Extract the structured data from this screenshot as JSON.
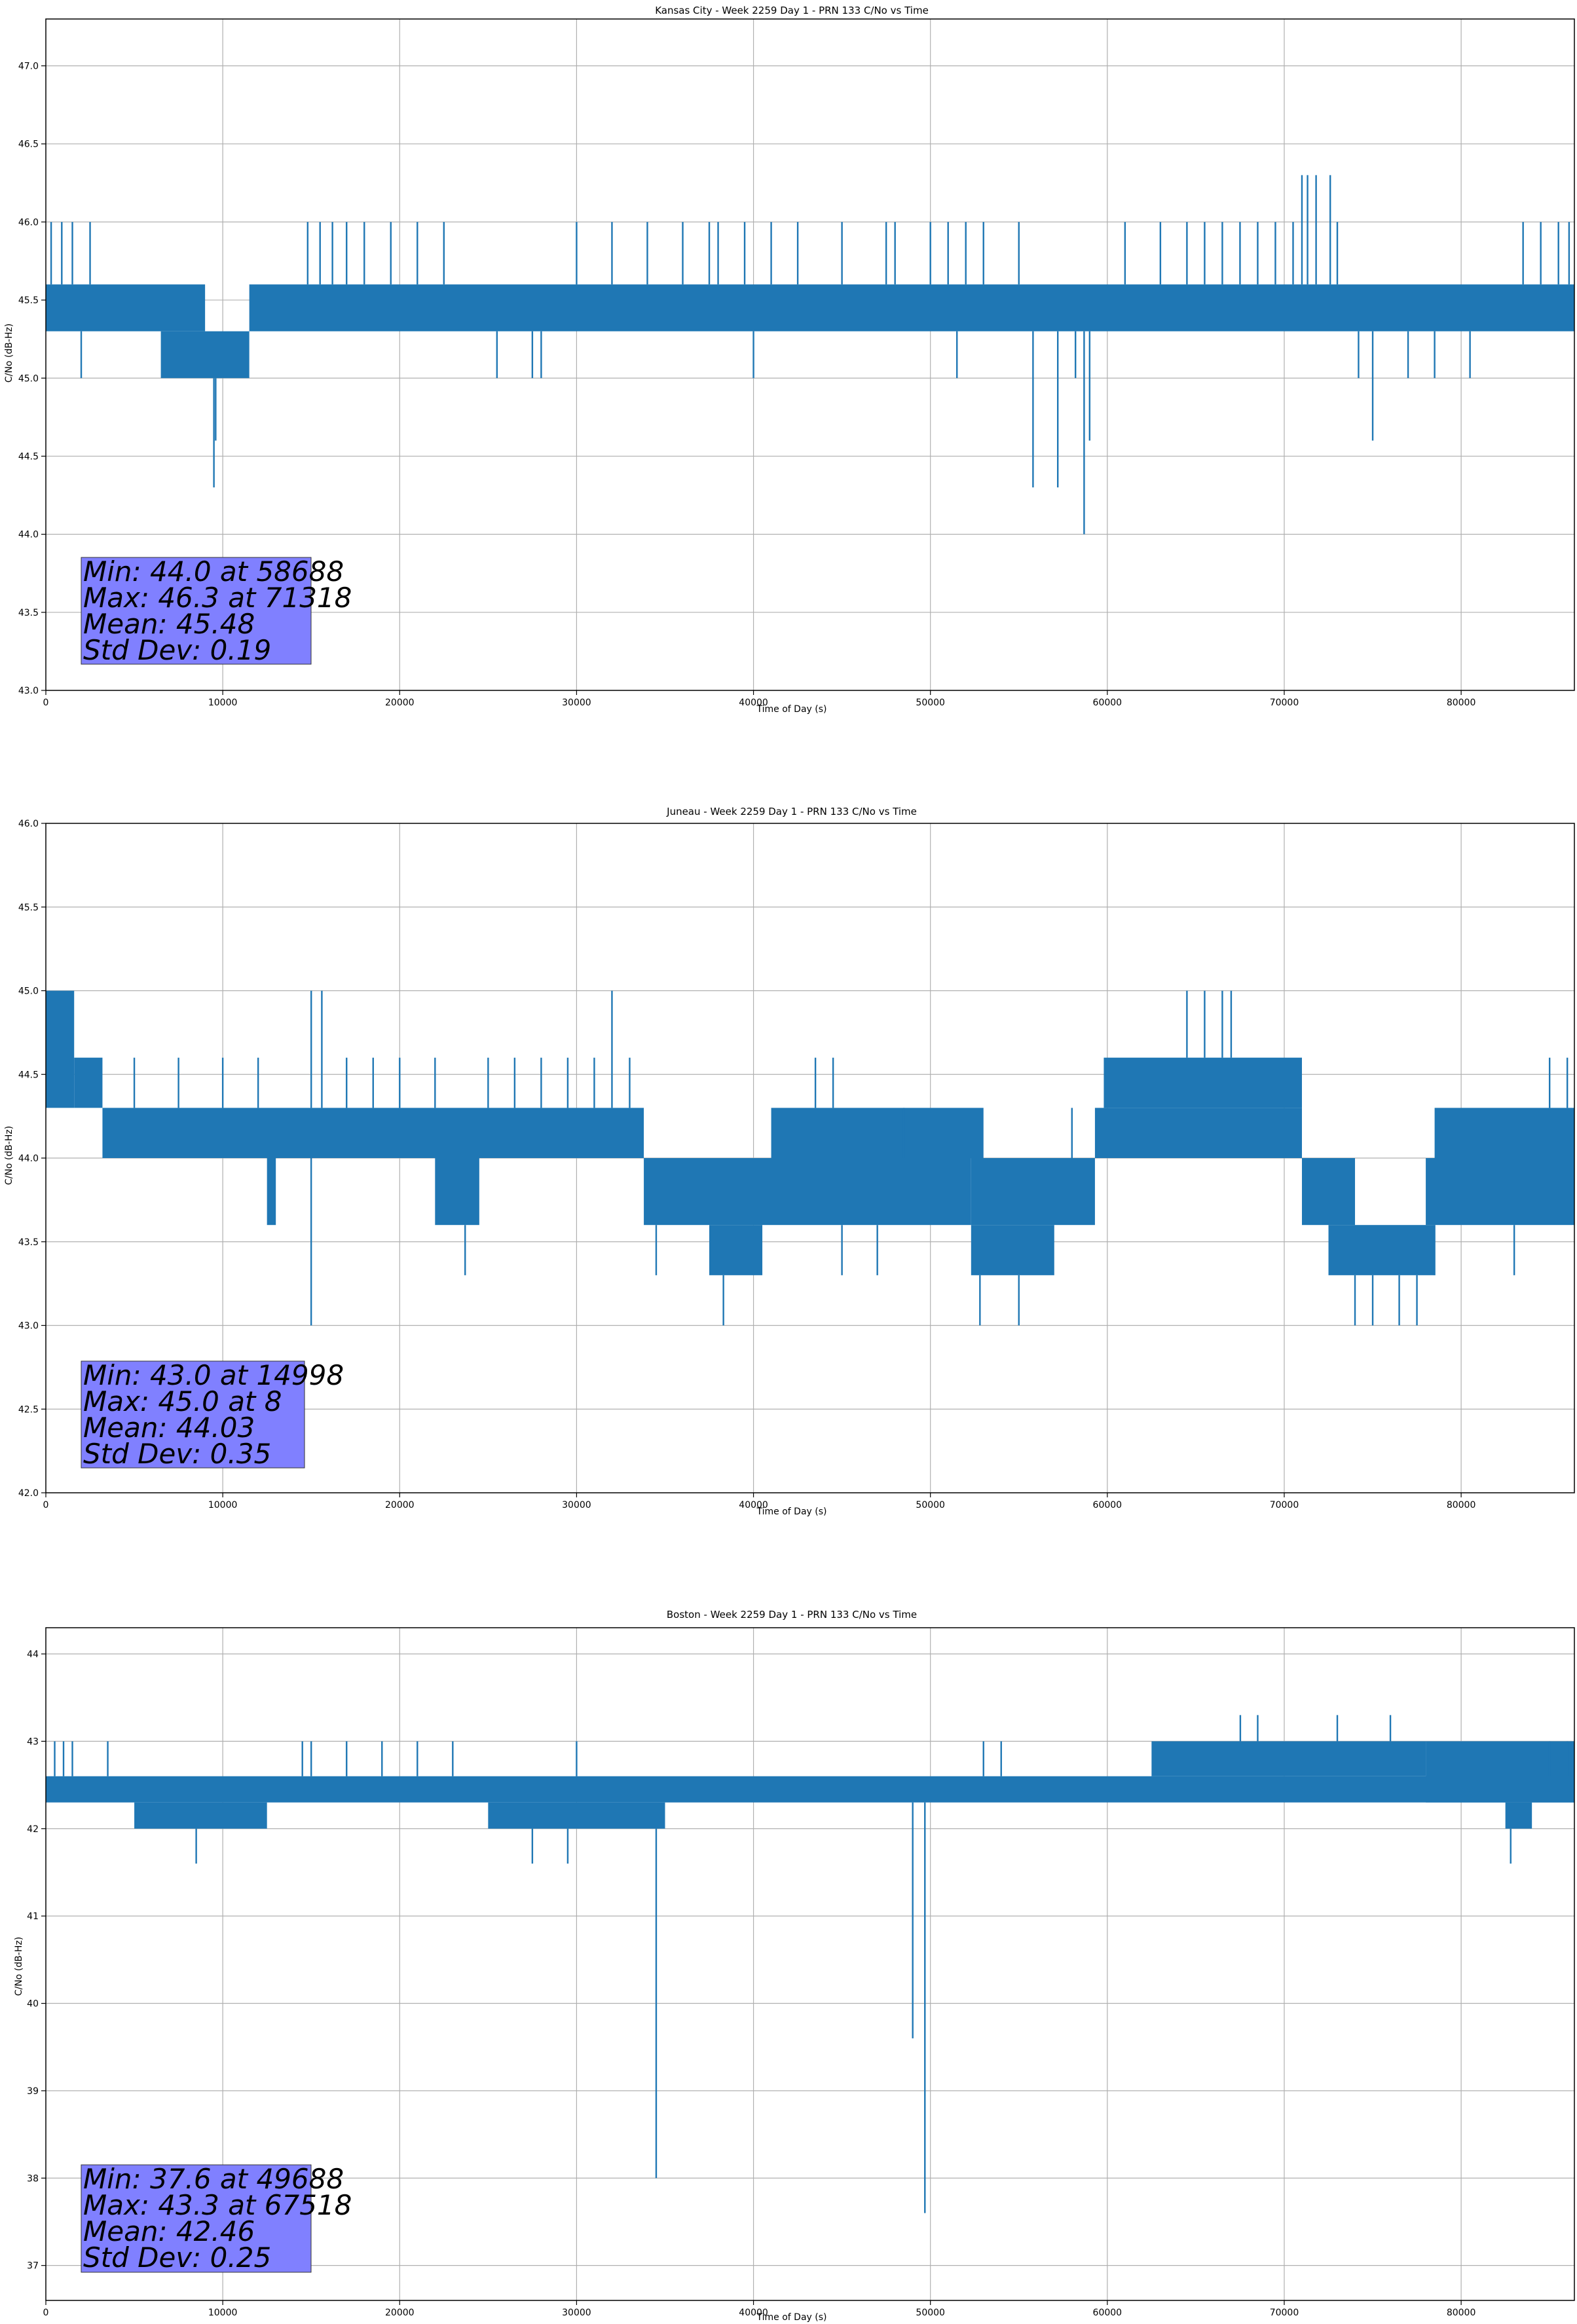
{
  "chart_data": [
    {
      "type": "line",
      "title": "Kansas City - Week 2259 Day 1 - PRN 133 C/No vs Time",
      "xlabel": "Time of Day (s)",
      "ylabel": "C/No (dB-Hz)",
      "xlim": [
        0,
        86400
      ],
      "ylim": [
        43.0,
        47.3
      ],
      "xticks": [
        0,
        10000,
        20000,
        30000,
        40000,
        50000,
        60000,
        70000,
        80000
      ],
      "yticks": [
        43.0,
        43.5,
        44.0,
        44.5,
        45.0,
        45.5,
        46.0,
        46.5,
        47.0
      ],
      "ytick_format": 1,
      "grid": true,
      "color": "#1f77b4",
      "series": [
        {
          "dense_bands": [
            {
              "x": [
                0,
                9000
              ],
              "y": [
                45.3,
                45.6
              ]
            },
            {
              "x": [
                6500,
                11500
              ],
              "y": [
                45.0,
                45.3
              ]
            },
            {
              "x": [
                11500,
                86400
              ],
              "y": [
                45.3,
                45.6
              ]
            }
          ],
          "excursions": [
            {
              "x": 300,
              "y": 46.0
            },
            {
              "x": 900,
              "y": 46.0
            },
            {
              "x": 1500,
              "y": 46.0
            },
            {
              "x": 2500,
              "y": 46.0
            },
            {
              "x": 2000,
              "y": 45.0
            },
            {
              "x": 9500,
              "y": 44.3
            },
            {
              "x": 9600,
              "y": 44.6
            },
            {
              "x": 14800,
              "y": 46.0
            },
            {
              "x": 15500,
              "y": 46.0
            },
            {
              "x": 16200,
              "y": 46.0
            },
            {
              "x": 17000,
              "y": 46.0
            },
            {
              "x": 18000,
              "y": 46.0
            },
            {
              "x": 19500,
              "y": 46.0
            },
            {
              "x": 21000,
              "y": 46.0
            },
            {
              "x": 22500,
              "y": 46.0
            },
            {
              "x": 25500,
              "y": 45.0
            },
            {
              "x": 27500,
              "y": 45.0
            },
            {
              "x": 28000,
              "y": 45.0
            },
            {
              "x": 30000,
              "y": 46.0
            },
            {
              "x": 32000,
              "y": 46.0
            },
            {
              "x": 34000,
              "y": 46.0
            },
            {
              "x": 36000,
              "y": 46.0
            },
            {
              "x": 37500,
              "y": 46.0
            },
            {
              "x": 38000,
              "y": 46.0
            },
            {
              "x": 39500,
              "y": 46.0
            },
            {
              "x": 41000,
              "y": 46.0
            },
            {
              "x": 42500,
              "y": 46.0
            },
            {
              "x": 40000,
              "y": 45.0
            },
            {
              "x": 45000,
              "y": 46.0
            },
            {
              "x": 47500,
              "y": 46.0
            },
            {
              "x": 51500,
              "y": 45.0
            },
            {
              "x": 48000,
              "y": 46.0
            },
            {
              "x": 50000,
              "y": 46.0
            },
            {
              "x": 51000,
              "y": 46.0
            },
            {
              "x": 52000,
              "y": 46.0
            },
            {
              "x": 53000,
              "y": 46.0
            },
            {
              "x": 55000,
              "y": 46.0
            },
            {
              "x": 55800,
              "y": 44.3
            },
            {
              "x": 57200,
              "y": 44.3
            },
            {
              "x": 58200,
              "y": 45.0
            },
            {
              "x": 58688,
              "y": 44.0
            },
            {
              "x": 59000,
              "y": 44.6
            },
            {
              "x": 61000,
              "y": 46.0
            },
            {
              "x": 63000,
              "y": 46.0
            },
            {
              "x": 64500,
              "y": 46.0
            },
            {
              "x": 65500,
              "y": 46.0
            },
            {
              "x": 66500,
              "y": 46.0
            },
            {
              "x": 67500,
              "y": 46.0
            },
            {
              "x": 68500,
              "y": 46.0
            },
            {
              "x": 69500,
              "y": 46.0
            },
            {
              "x": 70500,
              "y": 46.0
            },
            {
              "x": 71000,
              "y": 46.3
            },
            {
              "x": 71318,
              "y": 46.3
            },
            {
              "x": 71800,
              "y": 46.3
            },
            {
              "x": 72600,
              "y": 46.3
            },
            {
              "x": 73000,
              "y": 46.0
            },
            {
              "x": 74200,
              "y": 45.0
            },
            {
              "x": 75000,
              "y": 44.6
            },
            {
              "x": 77000,
              "y": 45.0
            },
            {
              "x": 78500,
              "y": 45.0
            },
            {
              "x": 80500,
              "y": 45.0
            },
            {
              "x": 83500,
              "y": 46.0
            },
            {
              "x": 84500,
              "y": 46.0
            },
            {
              "x": 85500,
              "y": 46.0
            },
            {
              "x": 86100,
              "y": 46.0
            }
          ]
        }
      ],
      "stats": [
        "Min: 44.0 at 58688",
        "Max: 46.3 at 71318",
        "Mean: 45.48",
        "Std Dev: 0.19"
      ]
    },
    {
      "type": "line",
      "title": "Juneau - Week 2259 Day 1 - PRN 133 C/No vs Time",
      "xlabel": "Time of Day (s)",
      "ylabel": "C/No (dB-Hz)",
      "xlim": [
        0,
        86400
      ],
      "ylim": [
        42.0,
        46.0
      ],
      "xticks": [
        0,
        10000,
        20000,
        30000,
        40000,
        50000,
        60000,
        70000,
        80000
      ],
      "yticks": [
        42.0,
        42.5,
        43.0,
        43.5,
        44.0,
        44.5,
        45.0,
        45.5,
        46.0
      ],
      "ytick_format": 1,
      "grid": true,
      "color": "#1f77b4",
      "series": [
        {
          "dense_bands": [
            {
              "x": [
                0,
                1600
              ],
              "y": [
                44.3,
                45.0
              ]
            },
            {
              "x": [
                1600,
                3200
              ],
              "y": [
                44.3,
                44.6
              ]
            },
            {
              "x": [
                3200,
                33800
              ],
              "y": [
                44.0,
                44.3
              ]
            },
            {
              "x": [
                12500,
                13000
              ],
              "y": [
                43.6,
                44.0
              ]
            },
            {
              "x": [
                22000,
                24500
              ],
              "y": [
                43.6,
                44.0
              ]
            },
            {
              "x": [
                33800,
                52300
              ],
              "y": [
                43.6,
                44.0
              ]
            },
            {
              "x": [
                37500,
                40500
              ],
              "y": [
                43.3,
                43.6
              ]
            },
            {
              "x": [
                41000,
                53000
              ],
              "y": [
                44.0,
                44.3
              ]
            },
            {
              "x": [
                52300,
                57000
              ],
              "y": [
                43.3,
                43.6
              ]
            },
            {
              "x": [
                52300,
                59300
              ],
              "y": [
                43.6,
                44.0
              ]
            },
            {
              "x": [
                59300,
                71000
              ],
              "y": [
                44.0,
                44.3
              ]
            },
            {
              "x": [
                59800,
                71000
              ],
              "y": [
                44.3,
                44.6
              ]
            },
            {
              "x": [
                71000,
                74000
              ],
              "y": [
                43.6,
                44.0
              ]
            },
            {
              "x": [
                72500,
                78500
              ],
              "y": [
                43.3,
                43.6
              ]
            },
            {
              "x": [
                78000,
                86400
              ],
              "y": [
                43.6,
                44.0
              ]
            },
            {
              "x": [
                78500,
                86400
              ],
              "y": [
                44.0,
                44.3
              ]
            }
          ],
          "excursions": [
            {
              "x": 8,
              "y": 45.0
            },
            {
              "x": 3000,
              "y": 44.6
            },
            {
              "x": 5000,
              "y": 44.6
            },
            {
              "x": 7500,
              "y": 44.6
            },
            {
              "x": 10000,
              "y": 44.6
            },
            {
              "x": 12000,
              "y": 44.6
            },
            {
              "x": 14998,
              "y": 43.0
            },
            {
              "x": 15000,
              "y": 45.0
            },
            {
              "x": 15600,
              "y": 45.0
            },
            {
              "x": 17000,
              "y": 44.6
            },
            {
              "x": 18500,
              "y": 44.6
            },
            {
              "x": 20000,
              "y": 44.6
            },
            {
              "x": 22000,
              "y": 44.6
            },
            {
              "x": 23700,
              "y": 43.3
            },
            {
              "x": 25000,
              "y": 44.6
            },
            {
              "x": 26500,
              "y": 44.6
            },
            {
              "x": 28000,
              "y": 44.6
            },
            {
              "x": 29500,
              "y": 44.6
            },
            {
              "x": 31000,
              "y": 44.6
            },
            {
              "x": 32000,
              "y": 45.0
            },
            {
              "x": 33000,
              "y": 44.6
            },
            {
              "x": 34500,
              "y": 43.3
            },
            {
              "x": 38300,
              "y": 43.0
            },
            {
              "x": 43500,
              "y": 44.6
            },
            {
              "x": 44500,
              "y": 44.6
            },
            {
              "x": 45000,
              "y": 43.3
            },
            {
              "x": 47000,
              "y": 43.3
            },
            {
              "x": 48500,
              "y": 44.3
            },
            {
              "x": 52800,
              "y": 43.0
            },
            {
              "x": 55000,
              "y": 43.0
            },
            {
              "x": 58000,
              "y": 44.3
            },
            {
              "x": 64500,
              "y": 45.0
            },
            {
              "x": 65500,
              "y": 45.0
            },
            {
              "x": 66500,
              "y": 45.0
            },
            {
              "x": 67000,
              "y": 45.0
            },
            {
              "x": 74000,
              "y": 43.0
            },
            {
              "x": 75000,
              "y": 43.0
            },
            {
              "x": 76500,
              "y": 43.0
            },
            {
              "x": 77500,
              "y": 43.0
            },
            {
              "x": 78500,
              "y": 43.3
            },
            {
              "x": 83000,
              "y": 43.3
            },
            {
              "x": 85000,
              "y": 44.6
            },
            {
              "x": 86000,
              "y": 44.6
            }
          ]
        }
      ],
      "stats": [
        "Min: 43.0 at 14998",
        "Max: 45.0 at 8",
        "Mean: 44.03",
        "Std Dev: 0.35"
      ]
    },
    {
      "type": "line",
      "title": "Boston - Week 2259 Day 1 - PRN 133 C/No vs Time",
      "xlabel": "Time of Day (s)",
      "ylabel": "C/No (dB-Hz)",
      "xlim": [
        0,
        86400
      ],
      "ylim": [
        36.6,
        44.3
      ],
      "xticks": [
        0,
        10000,
        20000,
        30000,
        40000,
        50000,
        60000,
        70000,
        80000
      ],
      "yticks": [
        37,
        38,
        39,
        40,
        41,
        42,
        43,
        44
      ],
      "ytick_format": 0,
      "grid": true,
      "color": "#1f77b4",
      "series": [
        {
          "dense_bands": [
            {
              "x": [
                0,
                86400
              ],
              "y": [
                42.3,
                42.6
              ]
            },
            {
              "x": [
                5000,
                12500
              ],
              "y": [
                42.0,
                42.3
              ]
            },
            {
              "x": [
                25000,
                35000
              ],
              "y": [
                42.0,
                42.3
              ]
            },
            {
              "x": [
                62500,
                78000
              ],
              "y": [
                42.6,
                43.0
              ]
            },
            {
              "x": [
                78000,
                86400
              ],
              "y": [
                42.3,
                43.0
              ]
            },
            {
              "x": [
                82500,
                84000
              ],
              "y": [
                42.0,
                42.3
              ]
            }
          ],
          "excursions": [
            {
              "x": 500,
              "y": 43.0
            },
            {
              "x": 1000,
              "y": 43.0
            },
            {
              "x": 1500,
              "y": 43.0
            },
            {
              "x": 3500,
              "y": 43.0
            },
            {
              "x": 8500,
              "y": 41.6
            },
            {
              "x": 14500,
              "y": 43.0
            },
            {
              "x": 15000,
              "y": 43.0
            },
            {
              "x": 17000,
              "y": 43.0
            },
            {
              "x": 19000,
              "y": 43.0
            },
            {
              "x": 21000,
              "y": 43.0
            },
            {
              "x": 23000,
              "y": 43.0
            },
            {
              "x": 27500,
              "y": 41.6
            },
            {
              "x": 29500,
              "y": 41.6
            },
            {
              "x": 30000,
              "y": 43.0
            },
            {
              "x": 34500,
              "y": 38.0
            },
            {
              "x": 49000,
              "y": 39.6
            },
            {
              "x": 49688,
              "y": 37.6
            },
            {
              "x": 53000,
              "y": 43.0
            },
            {
              "x": 54000,
              "y": 43.0
            },
            {
              "x": 67518,
              "y": 43.3
            },
            {
              "x": 68500,
              "y": 43.3
            },
            {
              "x": 73000,
              "y": 43.3
            },
            {
              "x": 76000,
              "y": 43.3
            },
            {
              "x": 82800,
              "y": 41.6
            },
            {
              "x": 85000,
              "y": 43.0
            },
            {
              "x": 86000,
              "y": 43.0
            }
          ]
        }
      ],
      "stats": [
        "Min: 37.6 at 49688",
        "Max: 43.3 at 67518",
        "Mean: 42.46",
        "Std Dev: 0.25"
      ]
    }
  ]
}
